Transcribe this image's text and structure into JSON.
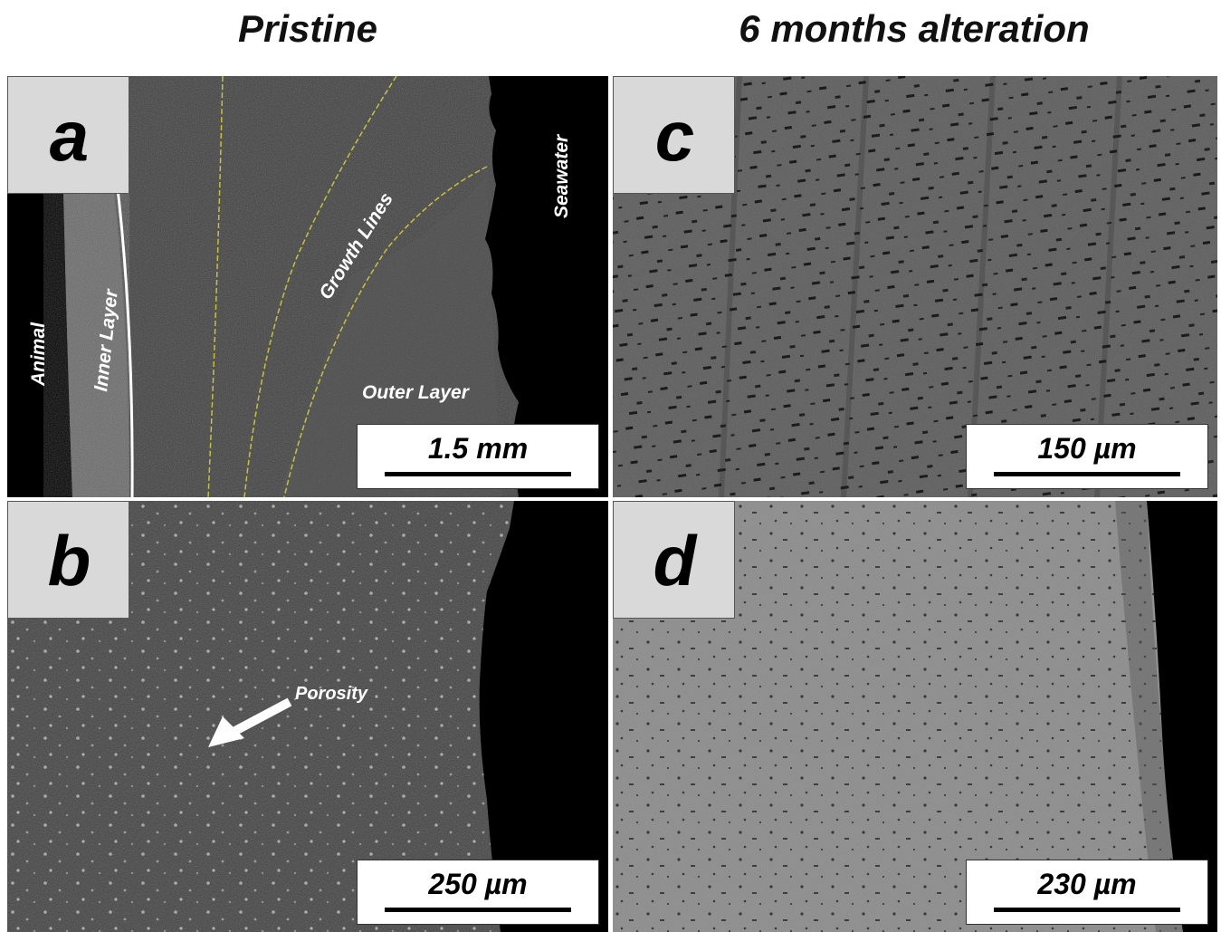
{
  "titles": {
    "left": "Pristine",
    "right": "6 months alteration"
  },
  "panels": {
    "a": {
      "letter": "a",
      "scale": "1.5 mm",
      "labels": {
        "animal": "Animal",
        "inner_layer": "Inner Layer",
        "growth_lines": "Growth Lines",
        "outer_layer": "Outer Layer",
        "seawater": "Seawater"
      }
    },
    "b": {
      "letter": "b",
      "scale": "250 µm",
      "labels": {
        "porosity": "Porosity"
      }
    },
    "c": {
      "letter": "c",
      "scale": "150 µm"
    },
    "d": {
      "letter": "d",
      "scale": "230 µm"
    }
  },
  "colors": {
    "growth_lines": "#c8c23a",
    "background": "#ffffff",
    "label_box": "#d9d9d9"
  }
}
